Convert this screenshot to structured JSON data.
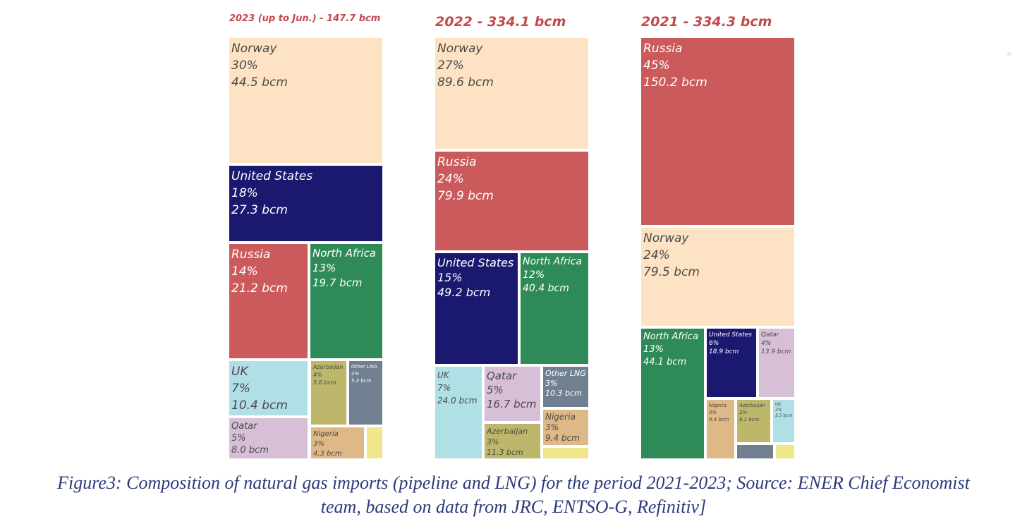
{
  "caption": {
    "line1": "Figure3: Composition of natural gas imports (pipeline and LNG) for the period 2021-2023; Source: ENER Chief Economist",
    "line2": "team, based on data from JRC, ENTSO-G, Refinitiv]"
  },
  "colors": {
    "Norway": "#fde2c3",
    "United States": "#1b1870",
    "Russia": "#cb5a5c",
    "North Africa": "#2e8b57",
    "UK": "#b0dfe5",
    "Qatar": "#d8bfd8",
    "Azerbaijan": "#bdb76b",
    "Other LNG": "#708090",
    "Nigeria": "#deb887",
    "Other": "#f0e68c"
  },
  "chart_data": [
    {
      "type": "treemap",
      "title": "2023 (up to Jun.) - 147.7 bcm",
      "total_bcm": 147.7,
      "cells": [
        {
          "name": "Norway",
          "pct": "30%",
          "value": "44.5 bcm"
        },
        {
          "name": "United States",
          "pct": "18%",
          "value": "27.3 bcm"
        },
        {
          "name": "Russia",
          "pct": "14%",
          "value": "21.2 bcm"
        },
        {
          "name": "North Africa",
          "pct": "13%",
          "value": "19.7 bcm"
        },
        {
          "name": "UK",
          "pct": "7%",
          "value": "10.4 bcm"
        },
        {
          "name": "Azerbaijan",
          "pct": "4%",
          "value": "5.6 bcm"
        },
        {
          "name": "Other LNG",
          "pct": "4%",
          "value": "5.3 bcm"
        },
        {
          "name": "Qatar",
          "pct": "5%",
          "value": "8.0 bcm"
        },
        {
          "name": "Nigeria",
          "pct": "3%",
          "value": "4.3 bcm"
        },
        {
          "name": "",
          "pct": "",
          "value": ""
        }
      ]
    },
    {
      "type": "treemap",
      "title": "2022 - 334.1 bcm",
      "total_bcm": 334.1,
      "cells": [
        {
          "name": "Norway",
          "pct": "27%",
          "value": "89.6 bcm"
        },
        {
          "name": "Russia",
          "pct": "24%",
          "value": "79.9 bcm"
        },
        {
          "name": "United States",
          "pct": "15%",
          "value": "49.2 bcm"
        },
        {
          "name": "North Africa",
          "pct": "12%",
          "value": "40.4 bcm"
        },
        {
          "name": "UK",
          "pct": "7%",
          "value": "24.0 bcm"
        },
        {
          "name": "Qatar",
          "pct": "5%",
          "value": "16.7 bcm"
        },
        {
          "name": "Other LNG",
          "pct": "3%",
          "value": "10.3 bcm"
        },
        {
          "name": "Azerbaijan",
          "pct": "3%",
          "value": "11.3 bcm"
        },
        {
          "name": "Nigeria",
          "pct": "3%",
          "value": "9.4 bcm"
        },
        {
          "name": "",
          "pct": "",
          "value": ""
        }
      ]
    },
    {
      "type": "treemap",
      "title": "2021 - 334.3 bcm",
      "total_bcm": 334.3,
      "cells": [
        {
          "name": "Russia",
          "pct": "45%",
          "value": "150.2 bcm"
        },
        {
          "name": "Norway",
          "pct": "24%",
          "value": "79.5 bcm"
        },
        {
          "name": "North Africa",
          "pct": "13%",
          "value": "44.1 bcm"
        },
        {
          "name": "United States",
          "pct": "6%",
          "value": "18.9 bcm"
        },
        {
          "name": "Qatar",
          "pct": "4%",
          "value": "13.9 bcm"
        },
        {
          "name": "Nigeria",
          "pct": "3%",
          "value": "9.4 bcm"
        },
        {
          "name": "Azerbaijan",
          "pct": "2%",
          "value": "8.1 bcm"
        },
        {
          "name": "UK",
          "pct": "2%",
          "value": "5.5 bcm"
        },
        {
          "name": "",
          "pct": "",
          "value": ""
        },
        {
          "name": "",
          "pct": "",
          "value": ""
        }
      ]
    }
  ]
}
